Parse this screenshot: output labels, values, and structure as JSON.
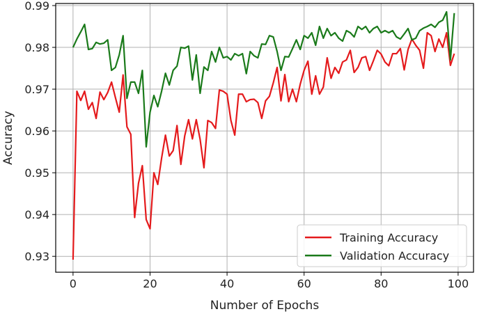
{
  "chart_data": {
    "type": "line",
    "title": "",
    "xlabel": "Number of Epochs",
    "ylabel": "Accuracy",
    "xlim": [
      -4.5,
      104
    ],
    "ylim": [
      0.9262,
      0.9905
    ],
    "xticks": [
      0,
      20,
      40,
      60,
      80,
      100
    ],
    "xtick_labels": [
      "0",
      "20",
      "40",
      "60",
      "80",
      "100"
    ],
    "yticks": [
      0.93,
      0.94,
      0.95,
      0.96,
      0.97,
      0.98,
      0.99
    ],
    "ytick_labels": [
      "0.93",
      "0.94",
      "0.95",
      "0.96",
      "0.97",
      "0.98",
      "0.99"
    ],
    "grid": true,
    "legend_position": "bottom-right",
    "x": [
      0,
      1,
      2,
      3,
      4,
      5,
      6,
      7,
      8,
      9,
      10,
      11,
      12,
      13,
      14,
      15,
      16,
      17,
      18,
      19,
      20,
      21,
      22,
      23,
      24,
      25,
      26,
      27,
      28,
      29,
      30,
      31,
      32,
      33,
      34,
      35,
      36,
      37,
      38,
      39,
      40,
      41,
      42,
      43,
      44,
      45,
      46,
      47,
      48,
      49,
      50,
      51,
      52,
      53,
      54,
      55,
      56,
      57,
      58,
      59,
      60,
      61,
      62,
      63,
      64,
      65,
      66,
      67,
      68,
      69,
      70,
      71,
      72,
      73,
      74,
      75,
      76,
      77,
      78,
      79,
      80,
      81,
      82,
      83,
      84,
      85,
      86,
      87,
      88,
      89,
      90,
      91,
      92,
      93,
      94,
      95,
      96,
      97,
      98,
      99
    ],
    "series": [
      {
        "name": "Training Accuracy",
        "color": "#e41a1c",
        "values": [
          0.9292,
          0.9695,
          0.9673,
          0.9695,
          0.9652,
          0.9668,
          0.963,
          0.9693,
          0.9675,
          0.9692,
          0.9717,
          0.968,
          0.9645,
          0.9734,
          0.961,
          0.9592,
          0.9393,
          0.9475,
          0.9517,
          0.9388,
          0.9366,
          0.95,
          0.9472,
          0.9535,
          0.959,
          0.954,
          0.9553,
          0.9613,
          0.952,
          0.9588,
          0.9627,
          0.9581,
          0.9627,
          0.958,
          0.9512,
          0.9625,
          0.962,
          0.9606,
          0.9698,
          0.9695,
          0.9688,
          0.9625,
          0.959,
          0.9688,
          0.9688,
          0.967,
          0.9675,
          0.9676,
          0.9668,
          0.963,
          0.9672,
          0.9683,
          0.9715,
          0.9752,
          0.9672,
          0.9735,
          0.967,
          0.97,
          0.967,
          0.9712,
          0.9745,
          0.9767,
          0.9688,
          0.9732,
          0.9688,
          0.9705,
          0.9775,
          0.9726,
          0.9752,
          0.9738,
          0.9765,
          0.977,
          0.9793,
          0.974,
          0.9752,
          0.9775,
          0.9778,
          0.9745,
          0.9768,
          0.9793,
          0.9784,
          0.9765,
          0.9756,
          0.9785,
          0.9785,
          0.9797,
          0.9746,
          0.9795,
          0.982,
          0.9805,
          0.9793,
          0.975,
          0.9835,
          0.9828,
          0.979,
          0.982,
          0.98,
          0.9835,
          0.9757,
          0.9785
        ]
      },
      {
        "name": "Validation Accuracy",
        "color": "#1a7a1a",
        "values": [
          0.98,
          0.982,
          0.9837,
          0.9855,
          0.9795,
          0.9797,
          0.9812,
          0.9808,
          0.981,
          0.9818,
          0.9745,
          0.9752,
          0.9782,
          0.9828,
          0.9678,
          0.9717,
          0.9717,
          0.969,
          0.9745,
          0.9562,
          0.9645,
          0.9685,
          0.9658,
          0.9695,
          0.9738,
          0.971,
          0.9745,
          0.9755,
          0.98,
          0.9798,
          0.9803,
          0.9722,
          0.9782,
          0.969,
          0.9753,
          0.9745,
          0.979,
          0.9765,
          0.98,
          0.9775,
          0.9778,
          0.977,
          0.9785,
          0.978,
          0.9785,
          0.9737,
          0.979,
          0.978,
          0.9775,
          0.9808,
          0.9807,
          0.9828,
          0.9825,
          0.979,
          0.9745,
          0.9778,
          0.9777,
          0.9797,
          0.9818,
          0.9795,
          0.9828,
          0.9822,
          0.9835,
          0.9805,
          0.985,
          0.9822,
          0.9845,
          0.9828,
          0.9835,
          0.9822,
          0.9815,
          0.984,
          0.9835,
          0.9825,
          0.985,
          0.9843,
          0.985,
          0.9835,
          0.9845,
          0.985,
          0.9835,
          0.984,
          0.9835,
          0.984,
          0.9825,
          0.982,
          0.9832,
          0.9845,
          0.9818,
          0.9822,
          0.984,
          0.9846,
          0.985,
          0.9855,
          0.9848,
          0.986,
          0.9865,
          0.9885,
          0.977,
          0.9882
        ]
      }
    ]
  }
}
